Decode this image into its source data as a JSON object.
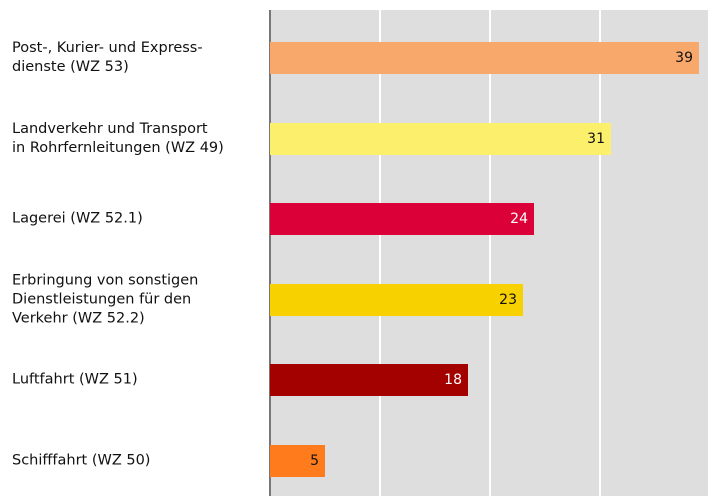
{
  "chart_data": {
    "type": "bar",
    "orientation": "horizontal",
    "categories": [
      "Post-, Kurier- und Express-\ndienste (WZ 53)",
      "Landverkehr und Transport\nin Rohrfernleitungen (WZ 49)",
      "Lagerei (WZ 52.1)",
      "Erbringung von sonstigen\nDienstleistungen für den\nVerkehr (WZ 52.2)",
      "Luftfahrt (WZ 51)",
      "Schifffahrt (WZ 50)"
    ],
    "values": [
      39,
      31,
      24,
      23,
      18,
      5
    ],
    "colors": [
      "#f9a86b",
      "#fcef6c",
      "#dc0039",
      "#f7d100",
      "#a30000",
      "#ff7b1c"
    ],
    "xlim": [
      0,
      40
    ],
    "xticks": [
      0,
      10,
      20,
      30,
      40
    ],
    "grid": true
  }
}
